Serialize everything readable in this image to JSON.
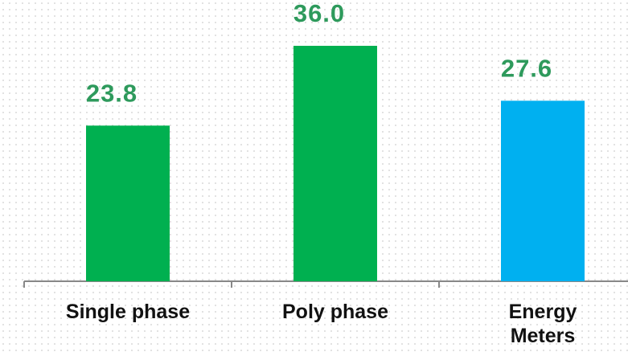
{
  "chart_data": {
    "type": "bar",
    "categories": [
      "Single phase",
      "Poly phase",
      "Energy Meters"
    ],
    "values": [
      23.8,
      36.0,
      27.6
    ],
    "value_labels": [
      "23.8",
      "36.0",
      "27.6"
    ],
    "colors": [
      "#00b050",
      "#00b050",
      "#00b0f0"
    ]
  }
}
